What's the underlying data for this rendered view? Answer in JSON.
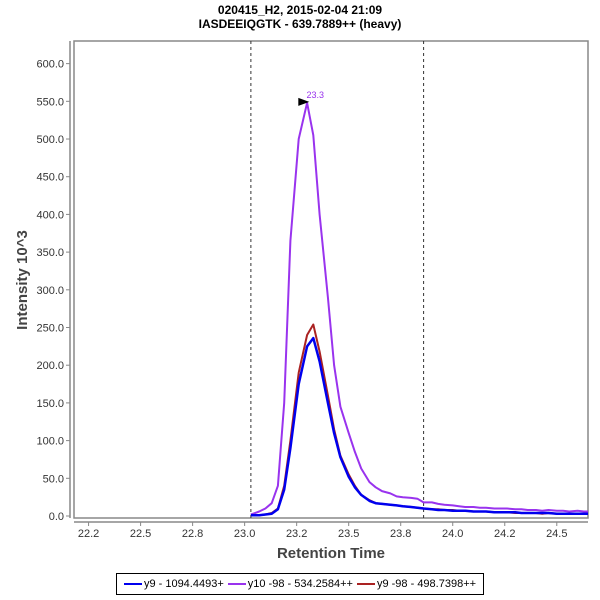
{
  "chart_data": {
    "type": "line",
    "title": "020415_H2, 2015-02-04 21:09",
    "subtitle": "IASDEEIQGTK - 639.7889++ (heavy)",
    "xlabel": "Retention Time",
    "ylabel": "Intensity 10^3",
    "xlim": [
      22.18,
      24.65
    ],
    "ylim": [
      0,
      630
    ],
    "x_ticks": [
      22.25,
      22.5,
      22.75,
      23.0,
      23.25,
      23.5,
      23.75,
      24.0,
      24.25,
      24.5
    ],
    "x_tick_labels": [
      "22.2",
      "22.5",
      "22.8",
      "23.0",
      "23.2",
      "23.5",
      "23.8",
      "24.0",
      "24.2",
      "24.5"
    ],
    "y_ticks": [
      0,
      50,
      100,
      150,
      200,
      250,
      300,
      350,
      400,
      450,
      500,
      550,
      600
    ],
    "y_tick_labels": [
      "0.0",
      "50.0",
      "100.0",
      "150.0",
      "200.0",
      "250.0",
      "300.0",
      "350.0",
      "400.0",
      "450.0",
      "500.0",
      "550.0",
      "600.0"
    ],
    "grid": false,
    "integration_boundaries": [
      23.03,
      23.86
    ],
    "peak_annotation": {
      "x": 23.33,
      "y": 548,
      "label": "23.3"
    },
    "legend_position": "bottom",
    "x": [
      23.03,
      23.07,
      23.1,
      23.13,
      23.16,
      23.19,
      23.22,
      23.26,
      23.3,
      23.33,
      23.36,
      23.4,
      23.43,
      23.46,
      23.5,
      23.53,
      23.56,
      23.6,
      23.63,
      23.66,
      23.7,
      23.73,
      23.76,
      23.8,
      23.83,
      23.86,
      23.9,
      23.93,
      23.96,
      24.0,
      24.03,
      24.06,
      24.1,
      24.13,
      24.16,
      24.2,
      24.23,
      24.26,
      24.3,
      24.33,
      24.36,
      24.4,
      24.43,
      24.46,
      24.5,
      24.53,
      24.56,
      24.6,
      24.63,
      24.65
    ],
    "series": [
      {
        "name": "y9 - 1094.4493+",
        "color": "#0000ee",
        "values": [
          1,
          1,
          2,
          3,
          9,
          35,
          90,
          175,
          225,
          236,
          205,
          150,
          110,
          78,
          52,
          38,
          28,
          20,
          17,
          16,
          15,
          14,
          13,
          12,
          11,
          10,
          9,
          8,
          8,
          7,
          7,
          7,
          6,
          6,
          6,
          5,
          5,
          5,
          5,
          4,
          4,
          4,
          4,
          4,
          3,
          3,
          3,
          3,
          3,
          3
        ]
      },
      {
        "name": "y10 -98 - 534.2584++",
        "color": "#9933ee",
        "values": [
          2,
          6,
          10,
          17,
          40,
          150,
          365,
          500,
          548,
          505,
          400,
          290,
          200,
          145,
          110,
          85,
          63,
          45,
          38,
          33,
          30,
          26,
          25,
          24,
          23,
          18,
          18,
          16,
          15,
          14,
          13,
          12,
          12,
          11,
          11,
          10,
          10,
          10,
          9,
          9,
          8,
          8,
          7,
          8,
          7,
          7,
          6,
          7,
          6,
          6
        ]
      },
      {
        "name": "y9 -98 - 498.7398++",
        "color": "#aa2222",
        "values": [
          1,
          1,
          2,
          4,
          10,
          40,
          100,
          190,
          240,
          254,
          218,
          160,
          115,
          80,
          55,
          40,
          28,
          21,
          17,
          16,
          15,
          14,
          13,
          12,
          11,
          10,
          9,
          9,
          8,
          8,
          7,
          7,
          6,
          6,
          6,
          5,
          5,
          5,
          4,
          4,
          4,
          4,
          3,
          4,
          3,
          3,
          3,
          3,
          3,
          3
        ]
      }
    ]
  }
}
